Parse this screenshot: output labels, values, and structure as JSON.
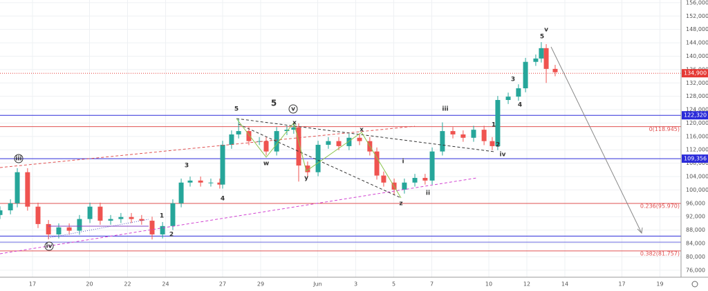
{
  "chart_data": {
    "type": "candlestick",
    "x": [
      15.29,
      15.84,
      16.2,
      16.74,
      17.29,
      17.84,
      18.38,
      18.93,
      19.47,
      20.02,
      20.56,
      21.11,
      21.65,
      22.2,
      22.74,
      23.29,
      23.84,
      24.38,
      24.82,
      25.29,
      25.84,
      26.38,
      26.85,
      27.0,
      27.47,
      27.84,
      28.38,
      28.93,
      29.29,
      29.84,
      30.38,
      30.74,
      31.0,
      31.47,
      32.02,
      32.56,
      33.11,
      33.65,
      34.2,
      34.74,
      35.11,
      35.47,
      36.02,
      36.56,
      37.11,
      37.65,
      38.02,
      38.56,
      39.11,
      39.65,
      40.2,
      40.75,
      41.18,
      41.47,
      42.02,
      42.56,
      42.93,
      43.47,
      43.76,
      44.02,
      44.49
    ],
    "open": [
      92500,
      93900,
      96000,
      105300,
      95000,
      89800,
      86700,
      88800,
      87800,
      91300,
      95000,
      90800,
      91300,
      91900,
      91300,
      90800,
      86700,
      89200,
      96000,
      102200,
      102800,
      102200,
      102200,
      101600,
      113500,
      116600,
      117600,
      114600,
      114600,
      111500,
      117600,
      118000,
      118700,
      107300,
      105300,
      113500,
      114600,
      113100,
      115600,
      114600,
      111500,
      104300,
      102200,
      100100,
      102200,
      103600,
      102800,
      111500,
      117600,
      116600,
      115600,
      118000,
      114600,
      113100,
      126900,
      127900,
      130400,
      138300,
      139300,
      142400,
      136200
    ],
    "high": [
      95100,
      97200,
      106500,
      106500,
      96200,
      91000,
      90000,
      90000,
      92500,
      96200,
      96200,
      92500,
      93100,
      93100,
      92500,
      92000,
      90400,
      97200,
      103400,
      104000,
      104000,
      103400,
      103400,
      114700,
      117800,
      121200,
      118800,
      115800,
      115800,
      118800,
      119200,
      120200,
      119900,
      108500,
      114700,
      115800,
      115800,
      116800,
      116800,
      115800,
      112700,
      105500,
      103400,
      103400,
      104800,
      104800,
      112700,
      120200,
      118800,
      117800,
      119200,
      119200,
      115800,
      128100,
      129100,
      131600,
      139500,
      140500,
      144200,
      143600,
      137400
    ],
    "low": [
      91300,
      92700,
      94800,
      93800,
      88600,
      85200,
      85500,
      86600,
      86600,
      90100,
      89600,
      89600,
      90100,
      90100,
      89600,
      85200,
      85500,
      88000,
      94800,
      101000,
      101000,
      101000,
      100400,
      100400,
      112300,
      115400,
      113400,
      113400,
      110300,
      110300,
      116400,
      116800,
      102500,
      104100,
      104100,
      112300,
      111900,
      111900,
      113400,
      110300,
      103100,
      101000,
      98500,
      98900,
      101000,
      101600,
      101600,
      110300,
      115400,
      114400,
      114400,
      113400,
      111900,
      111900,
      125700,
      126700,
      129200,
      137100,
      138100,
      132000,
      134000
    ],
    "close": [
      93900,
      96000,
      105300,
      95000,
      89800,
      86700,
      88800,
      87800,
      91300,
      95000,
      90800,
      91300,
      91900,
      91300,
      90800,
      86700,
      89200,
      96000,
      102200,
      102800,
      102200,
      102200,
      101600,
      113500,
      116600,
      117600,
      114600,
      114600,
      111500,
      117600,
      118000,
      118700,
      107300,
      105300,
      113500,
      114600,
      113100,
      115600,
      114600,
      111500,
      104300,
      102200,
      100100,
      102200,
      103600,
      102800,
      111500,
      117600,
      116600,
      115600,
      118000,
      114600,
      113100,
      126900,
      127900,
      130400,
      138300,
      139300,
      142400,
      136200,
      135200
    ],
    "up_color": "#26a69a",
    "down_color": "#ef5350",
    "xlim": [
      15.29,
      51.11
    ],
    "ylim": [
      73900,
      156800
    ],
    "xticks": [
      17,
      20,
      22,
      24,
      27,
      29,
      {
        "value": 32,
        "label": "Jun"
      },
      {
        "value": 34,
        "label": "3"
      },
      {
        "value": 36,
        "label": "5"
      },
      {
        "value": 38,
        "label": "7"
      },
      {
        "value": 41,
        "label": "10"
      },
      {
        "value": 43,
        "label": "12"
      },
      {
        "value": 45,
        "label": "14"
      },
      {
        "value": 48,
        "label": "17"
      },
      {
        "value": 50,
        "label": "19"
      }
    ],
    "yticks": [
      {
        "value": 76000,
        "label": "76,000"
      },
      {
        "value": 80000,
        "label": "80,000"
      },
      {
        "value": 84000,
        "label": "84,000"
      },
      {
        "value": 88000,
        "label": "88,000"
      },
      {
        "value": 92000,
        "label": "92,000"
      },
      {
        "value": 96000,
        "label": "96,000"
      },
      {
        "value": 100000,
        "label": "100,000"
      },
      {
        "value": 104000,
        "label": "104,000"
      },
      {
        "value": 108000,
        "label": "108,000"
      },
      {
        "value": 112000,
        "label": "112,000"
      },
      {
        "value": 116000,
        "label": "116,000"
      },
      {
        "value": 120000,
        "label": "120,000"
      },
      {
        "value": 124000,
        "label": "124,000"
      },
      {
        "value": 128000,
        "label": "128,000"
      },
      {
        "value": 132000,
        "label": "132,000"
      },
      {
        "value": 136000,
        "label": "136,000"
      },
      {
        "value": 140000,
        "label": "140,000"
      },
      {
        "value": 144000,
        "label": "144,000"
      },
      {
        "value": 148000,
        "label": "148,000"
      },
      {
        "value": 152000,
        "label": "152,000"
      },
      {
        "value": 156000,
        "label": "156,000"
      }
    ],
    "grid": true,
    "levels": [
      {
        "value": 122320,
        "color": "#2b2bd9",
        "label": "122,320",
        "label_position": "axis"
      },
      {
        "value": 109356,
        "color": "#2b2bd9",
        "label": "109,356",
        "label_position": "axis"
      },
      {
        "value": 86200,
        "color": "#2b2bd9"
      },
      {
        "value": 84400,
        "color": "#6b6be0"
      },
      {
        "value": 118945,
        "color": "#e05050",
        "label": "0(118.945)",
        "label_position": "plot"
      },
      {
        "value": 95970,
        "color": "#e05050",
        "label": "0.236(95.970)",
        "label_position": "plot"
      },
      {
        "value": 81757,
        "color": "#e05050",
        "label": "0.382(81.757)",
        "label_position": "plot"
      },
      {
        "value": 134900,
        "color": "#e53935",
        "label": "134,900",
        "label_position": "axis",
        "dotted": true
      }
    ],
    "annotations": [
      "iii",
      "iv",
      "5",
      "5",
      "v",
      "x",
      "w",
      "y",
      "x",
      "z",
      "i",
      "ii",
      "iii",
      "iv",
      "1",
      "2",
      "3",
      "4",
      "5",
      "v",
      "1",
      "2",
      "3",
      "4"
    ]
  }
}
